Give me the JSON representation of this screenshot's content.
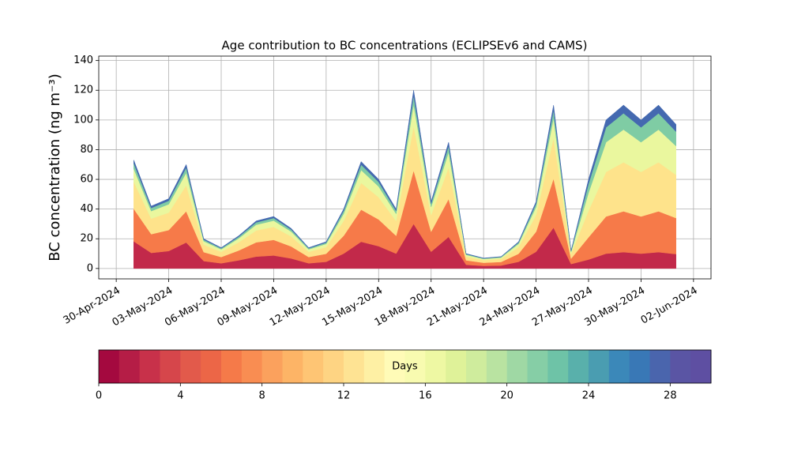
{
  "chart_data": {
    "type": "stacked_area",
    "title": "Age contribution to BC concentrations (ECLIPSEv6 and CAMS)",
    "ylabel": "BC concentration (ng m⁻³)",
    "x": [
      "2024-05-01",
      "2024-05-02",
      "2024-05-03",
      "2024-05-04",
      "2024-05-05",
      "2024-05-06",
      "2024-05-07",
      "2024-05-08",
      "2024-05-09",
      "2024-05-10",
      "2024-05-11",
      "2024-05-12",
      "2024-05-13",
      "2024-05-14",
      "2024-05-15",
      "2024-05-16",
      "2024-05-17",
      "2024-05-18",
      "2024-05-19",
      "2024-05-20",
      "2024-05-21",
      "2024-05-22",
      "2024-05-23",
      "2024-05-24",
      "2024-05-25",
      "2024-05-26",
      "2024-05-27",
      "2024-05-28",
      "2024-05-29",
      "2024-05-30",
      "2024-05-31",
      "2024-06-01"
    ],
    "series": [
      {
        "color": "#c2294a",
        "values": [
          18.25,
          10.5,
          11.75,
          17.5,
          5,
          3.5,
          5.5,
          8,
          8.75,
          6.75,
          3.5,
          4.5,
          10,
          18,
          15,
          10,
          30,
          11.25,
          21.25,
          2.5,
          1.75,
          2,
          4.5,
          11.25,
          27.5,
          3,
          6,
          10,
          11,
          10,
          11,
          9.7
        ]
      },
      {
        "color": "#f67a49",
        "values": [
          21.9,
          12.6,
          14.1,
          21,
          6,
          4.2,
          6.6,
          9.6,
          10.5,
          8.1,
          4.2,
          5.4,
          12,
          21.6,
          18,
          12,
          36,
          13.5,
          25.5,
          3,
          2.1,
          2.4,
          5.4,
          13.5,
          33,
          3.6,
          15,
          25,
          27.5,
          25,
          27.5,
          24.25
        ]
      },
      {
        "color": "#fee38b",
        "values": [
          18.25,
          10.5,
          11.75,
          17.5,
          5,
          3.5,
          5.5,
          8,
          8.75,
          6.75,
          3.5,
          4.5,
          10,
          18,
          15,
          10,
          30,
          11.25,
          21.25,
          2.5,
          1.75,
          2,
          4.5,
          11.25,
          27.5,
          3,
          18,
          30,
          33,
          30,
          33,
          29.1
        ]
      },
      {
        "color": "#eaf79e",
        "values": [
          8.76,
          5.04,
          5.64,
          8.4,
          2.4,
          1.68,
          2.64,
          3.84,
          4.2,
          3.24,
          1.68,
          2.16,
          4.8,
          8.64,
          7.2,
          4.8,
          14.4,
          5.4,
          10.2,
          1.2,
          0.84,
          0.96,
          2.16,
          5.4,
          13.2,
          1.44,
          12,
          20,
          22,
          20,
          22,
          19.4
        ]
      },
      {
        "color": "#7fcca4",
        "values": [
          3.65,
          2.1,
          2.35,
          3.5,
          1,
          0.7,
          1.1,
          1.6,
          1.75,
          1.35,
          0.7,
          0.9,
          2,
          3.6,
          3,
          2,
          6,
          2.25,
          4.25,
          0.5,
          0.35,
          0.4,
          0.9,
          2.25,
          5.5,
          0.6,
          6,
          10,
          11,
          10,
          11,
          9.7
        ]
      },
      {
        "color": "#4469b0",
        "values": [
          2.19,
          1.26,
          1.41,
          2.1,
          0.6,
          0.42,
          0.66,
          0.96,
          1.05,
          0.81,
          0.42,
          0.54,
          1.2,
          2.16,
          1.8,
          1.2,
          3.6,
          1.35,
          2.55,
          0.3,
          0.21,
          0.24,
          0.54,
          1.35,
          3.3,
          0.36,
          3,
          5,
          5.5,
          5,
          5.5,
          4.85
        ]
      }
    ],
    "xlim": [
      "2024-04-29",
      "2024-06-03"
    ],
    "xticks": [
      {
        "value": "2024-04-30",
        "label": "30-Apr-2024"
      },
      {
        "value": "2024-05-03",
        "label": "03-May-2024"
      },
      {
        "value": "2024-05-06",
        "label": "06-May-2024"
      },
      {
        "value": "2024-05-09",
        "label": "09-May-2024"
      },
      {
        "value": "2024-05-12",
        "label": "12-May-2024"
      },
      {
        "value": "2024-05-15",
        "label": "15-May-2024"
      },
      {
        "value": "2024-05-18",
        "label": "18-May-2024"
      },
      {
        "value": "2024-05-21",
        "label": "21-May-2024"
      },
      {
        "value": "2024-05-24",
        "label": "24-May-2024"
      },
      {
        "value": "2024-05-27",
        "label": "27-May-2024"
      },
      {
        "value": "2024-05-30",
        "label": "30-May-2024"
      },
      {
        "value": "2024-06-02",
        "label": "02-Jun-2024"
      }
    ],
    "ylim": [
      -7,
      143
    ],
    "yticks": [
      0,
      20,
      40,
      60,
      80,
      100,
      120,
      140
    ],
    "grid": true,
    "colorbar": {
      "label": "Days",
      "lim": [
        0,
        30
      ],
      "ticks": [
        0,
        4,
        8,
        12,
        16,
        20,
        24,
        28
      ],
      "colors": [
        "#a4093f",
        "#b51d46",
        "#c8314a",
        "#d6464b",
        "#e25a4b",
        "#ec6647",
        "#f57a49",
        "#f98d52",
        "#fba15d",
        "#fdb466",
        "#fec574",
        "#fed483",
        "#fee393",
        "#fef0a4",
        "#fffbb7",
        "#f8fbb0",
        "#eef8a3",
        "#dff299",
        "#cfec9d",
        "#b9e3a1",
        "#9fd8a4",
        "#86cea6",
        "#6ec3a7",
        "#59b0ab",
        "#4a9db1",
        "#3b88b9",
        "#3978b6",
        "#4a65ad",
        "#5a55a4",
        "#5e4fa2"
      ]
    }
  }
}
